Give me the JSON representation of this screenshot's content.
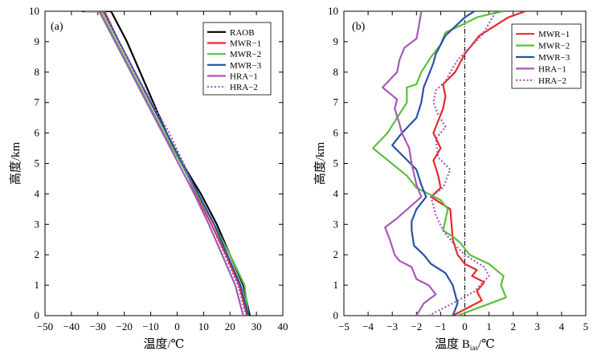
{
  "chart_data": [
    {
      "type": "line",
      "panel_label": "(a)",
      "xlabel": "温度/℃",
      "ylabel": "高度/km",
      "xlim": [
        -50,
        40
      ],
      "ylim": [
        0,
        10
      ],
      "xticks": [
        -50,
        -40,
        -30,
        -20,
        -10,
        0,
        10,
        20,
        30,
        40
      ],
      "xtick_labels": [
        "−50",
        "−40",
        "−30",
        "−20",
        "−10",
        "0",
        "10",
        "20",
        "30",
        "40"
      ],
      "yticks": [
        0,
        1,
        2,
        3,
        4,
        5,
        6,
        7,
        8,
        9,
        10
      ],
      "legend_position": "top-right",
      "series": [
        {
          "name": "RAOB",
          "color": "#000000",
          "dash": "solid",
          "x": [
            27.5,
            25,
            20,
            15,
            9,
            2,
            -4,
            -9,
            -14,
            -19,
            -25,
            -30.5,
            -36
          ],
          "y": [
            0,
            1,
            2,
            3,
            4,
            5,
            6,
            7,
            8,
            9,
            10,
            10,
            10
          ]
        },
        {
          "name": "MWR-1",
          "color": "#e8282d",
          "dash": "solid",
          "x": [
            26.5,
            23.5,
            18.5,
            13,
            7,
            2,
            -4,
            -10,
            -16,
            -22,
            -27.5,
            -33,
            -33
          ],
          "y": [
            0,
            1,
            2,
            3,
            4,
            5,
            6,
            7,
            8,
            9,
            10,
            10,
            10
          ]
        },
        {
          "name": "MWR-2",
          "color": "#5bbf3f",
          "dash": "solid",
          "x": [
            27,
            25.5,
            20,
            14,
            7.5,
            1.5,
            -5,
            -11,
            -17,
            -23,
            -29,
            -34,
            -34
          ],
          "y": [
            0,
            1,
            2,
            3,
            4,
            5,
            6,
            7,
            8,
            9,
            10,
            10,
            10
          ]
        },
        {
          "name": "MWR-3",
          "color": "#2952a3",
          "dash": "solid",
          "x": [
            27,
            24,
            19,
            14,
            8,
            2,
            -4,
            -10,
            -16,
            -22,
            -28,
            -34,
            -34
          ],
          "y": [
            0,
            1,
            2,
            3,
            4,
            5,
            6,
            7,
            8,
            9,
            10,
            10,
            10
          ]
        },
        {
          "name": "HRA-1",
          "color": "#a55ab5",
          "dash": "solid",
          "x": [
            25,
            22,
            17,
            12,
            6.5,
            0.5,
            -5.5,
            -11.5,
            -17.5,
            -23.5,
            -29.5,
            -35,
            -35
          ],
          "y": [
            0,
            1,
            2,
            3,
            4,
            5,
            6,
            7,
            8,
            9,
            10,
            10,
            10
          ]
        },
        {
          "name": "HRA-2",
          "color": "#a55ab5",
          "dash": "dotted",
          "x": [
            26,
            23,
            18,
            13,
            7,
            2.5,
            -3,
            -9.5,
            -16,
            -22,
            -28,
            -34,
            -34
          ],
          "y": [
            0,
            1,
            2,
            3,
            4,
            5,
            6,
            7,
            8,
            9,
            10,
            10,
            10
          ]
        }
      ]
    },
    {
      "type": "line",
      "panel_label": "(b)",
      "xlabel": "温度 B",
      "xlabel_sub": "ias",
      "xlabel_unit": "/℃",
      "ylabel": "高度/km",
      "xlim": [
        -5,
        5
      ],
      "ylim": [
        0,
        10
      ],
      "xticks": [
        -5,
        -4,
        -3,
        -2,
        -1,
        0,
        1,
        2,
        3,
        4,
        5
      ],
      "xtick_labels": [
        "−5",
        "−4",
        "−3",
        "−2",
        "−1",
        "0",
        "1",
        "2",
        "3",
        "4",
        "5"
      ],
      "yticks": [
        0,
        1,
        2,
        3,
        4,
        5,
        6,
        7,
        8,
        9,
        10
      ],
      "zero_line": 0,
      "legend_position": "top-right",
      "series": [
        {
          "name": "MWR-1",
          "color": "#e8282d",
          "dash": "solid",
          "x": [
            -0.5,
            0.7,
            0.5,
            0.8,
            0.3,
            0.5,
            0.0,
            -0.3,
            -0.5,
            -0.6,
            -1.4,
            -1.0,
            -1.1,
            -1.3,
            -1.0,
            -1.3,
            -1.1,
            -0.9,
            -0.8,
            -0.9,
            -0.4,
            -0.2,
            0.0,
            0.3,
            0.6,
            1.2,
            1.8,
            2.5
          ],
          "y": [
            0,
            0.5,
            0.8,
            1.1,
            1.3,
            1.5,
            1.7,
            2.0,
            2.5,
            3.5,
            3.9,
            4.2,
            4.6,
            5.1,
            5.5,
            6.0,
            6.4,
            6.8,
            7.2,
            7.6,
            8.0,
            8.3,
            8.6,
            8.9,
            9.2,
            9.5,
            9.8,
            10
          ]
        },
        {
          "name": "MWR-2",
          "color": "#5bbf3f",
          "dash": "solid",
          "x": [
            -0.3,
            1.7,
            1.5,
            1.6,
            1.0,
            0.2,
            -0.2,
            -0.5,
            -0.9,
            -0.7,
            -1.0,
            -2.0,
            -2.4,
            -3.8,
            -3.2,
            -2.8,
            -2.4,
            -2.4,
            -2.0,
            -1.8,
            -1.4,
            -1.0,
            -0.8,
            0.0,
            0.5,
            1.0,
            1.6
          ],
          "y": [
            0,
            0.6,
            1.0,
            1.3,
            1.7,
            2.0,
            2.4,
            2.6,
            2.8,
            3.5,
            3.8,
            4.2,
            4.6,
            5.5,
            6.0,
            6.5,
            7.0,
            7.5,
            7.6,
            8.0,
            8.5,
            8.9,
            9.3,
            9.6,
            9.8,
            9.9,
            10
          ]
        },
        {
          "name": "MWR-3",
          "color": "#2952a3",
          "dash": "solid",
          "x": [
            -0.5,
            -0.3,
            -0.5,
            -0.8,
            -1.4,
            -1.7,
            -2.1,
            -2.2,
            -2.2,
            -2.0,
            -1.6,
            -1.8,
            -2.0,
            -3.0,
            -2.6,
            -2.0,
            -1.8,
            -1.7,
            -1.5,
            -1.3,
            -1.2,
            -1.0,
            -0.8,
            -0.4,
            0.0,
            0.4
          ],
          "y": [
            0,
            0.4,
            1.0,
            1.4,
            1.7,
            2.0,
            2.3,
            2.8,
            3.1,
            3.5,
            3.9,
            4.3,
            4.8,
            5.6,
            6.0,
            6.5,
            7.0,
            7.5,
            7.9,
            8.3,
            8.6,
            8.9,
            9.2,
            9.5,
            9.8,
            10
          ]
        },
        {
          "name": "HRA-1",
          "color": "#a55ab5",
          "dash": "solid",
          "x": [
            -2.0,
            -1.7,
            -1.2,
            -1.5,
            -2.0,
            -2.2,
            -2.7,
            -2.9,
            -3.1,
            -3.3,
            -2.8,
            -1.8,
            -2.0,
            -2.2,
            -2.3,
            -2.6,
            -2.7,
            -2.9,
            -2.8,
            -3.4,
            -2.8,
            -2.7,
            -2.5,
            -2.0,
            -1.9,
            -1.8
          ],
          "y": [
            0,
            0.4,
            0.7,
            1.0,
            1.2,
            1.6,
            1.8,
            2.0,
            2.5,
            2.9,
            3.2,
            3.9,
            4.3,
            5.0,
            5.5,
            6.0,
            6.3,
            6.8,
            7.1,
            7.5,
            8.0,
            8.4,
            8.8,
            9.1,
            9.5,
            10
          ]
        },
        {
          "name": "HRA-2",
          "color": "#a55ab5",
          "dash": "dotted",
          "x": [
            -1.5,
            -0.5,
            0.4,
            1.0,
            0.8,
            0.0,
            -0.5,
            -0.9,
            -1.2,
            -1.4,
            -0.9,
            -0.6,
            -1.1,
            -1.2,
            -0.8,
            -1.1,
            -1.3,
            -1.2,
            -0.8,
            -0.6,
            -0.3,
            0.2,
            0.7,
            1.0,
            1.3
          ],
          "y": [
            0,
            0.4,
            0.8,
            1.3,
            1.6,
            2.0,
            2.4,
            2.8,
            3.3,
            3.9,
            4.2,
            4.8,
            5.2,
            5.8,
            6.2,
            6.6,
            7.0,
            7.4,
            7.7,
            8.0,
            8.4,
            8.8,
            9.2,
            9.6,
            10
          ]
        }
      ]
    }
  ]
}
